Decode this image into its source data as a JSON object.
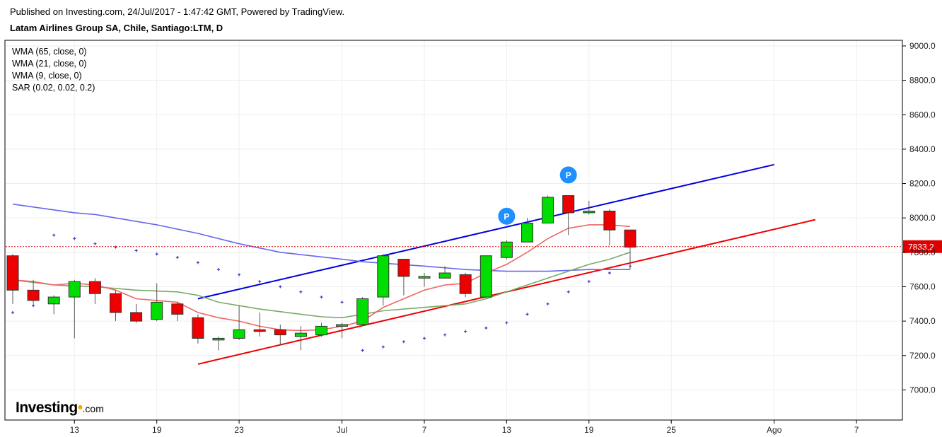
{
  "header": {
    "published": "Published on Investing.com, 24/Jul/2017 - 1:47:42 GMT, Powered by TradingView.",
    "instrument": "Latam Airlines Group SA, Chile, Santiago:LTM, D"
  },
  "legend": [
    "WMA (65, close, 0)",
    "WMA (21, close, 0)",
    "WMA (9, close, 0)",
    "SAR (0.02, 0.02, 0.2)"
  ],
  "brand": {
    "name": "Investing",
    "tld": ".com"
  },
  "colors": {
    "up": "#00dd00",
    "down": "#ee0000",
    "wick": "#555555",
    "wma65": "#6666ee",
    "wma21": "#77aa66",
    "wma9": "#ee6666",
    "sar": "#3333cc",
    "channel_upper": "#0000dd",
    "channel_lower": "#ee0000",
    "pivot": "#1e90ff",
    "last_price": "#dd0000",
    "grid": "#eeeeee"
  },
  "chart_data": {
    "type": "candlestick",
    "y_axis": {
      "ylim": [
        6850,
        9050
      ],
      "ticks": [
        9000,
        8800,
        8600,
        8400,
        8200,
        8000,
        7800,
        7600,
        7400,
        7200,
        7000
      ],
      "tick_labels": [
        "9000.0",
        "8800.0",
        "8600.0",
        "8400.0",
        "8200.0",
        "8000.0",
        "7800.0",
        "7600.0",
        "7400.0",
        "7200.0",
        "7000.0"
      ]
    },
    "x_axis": {
      "tick_labels": [
        "13",
        "19",
        "23",
        "Jul",
        "7",
        "13",
        "19",
        "25",
        "Ago",
        "7"
      ],
      "tick_bar_index": [
        3,
        7,
        11,
        16,
        20,
        24,
        28,
        32,
        37,
        41
      ]
    },
    "last_price": {
      "value": 7833.2,
      "label": "7833.2"
    },
    "candles": [
      {
        "o": 7780,
        "h": 7790,
        "l": 7500,
        "c": 7580
      },
      {
        "o": 7580,
        "h": 7640,
        "l": 7500,
        "c": 7520
      },
      {
        "o": 7500,
        "h": 7550,
        "l": 7440,
        "c": 7540
      },
      {
        "o": 7540,
        "h": 7640,
        "l": 7300,
        "c": 7630
      },
      {
        "o": 7630,
        "h": 7650,
        "l": 7500,
        "c": 7560
      },
      {
        "o": 7560,
        "h": 7580,
        "l": 7400,
        "c": 7450
      },
      {
        "o": 7450,
        "h": 7500,
        "l": 7390,
        "c": 7400
      },
      {
        "o": 7410,
        "h": 7620,
        "l": 7400,
        "c": 7510
      },
      {
        "o": 7500,
        "h": 7510,
        "l": 7400,
        "c": 7440
      },
      {
        "o": 7420,
        "h": 7440,
        "l": 7270,
        "c": 7300
      },
      {
        "o": 7290,
        "h": 7310,
        "l": 7230,
        "c": 7300
      },
      {
        "o": 7300,
        "h": 7490,
        "l": 7290,
        "c": 7350
      },
      {
        "o": 7350,
        "h": 7450,
        "l": 7310,
        "c": 7340
      },
      {
        "o": 7350,
        "h": 7380,
        "l": 7260,
        "c": 7320
      },
      {
        "o": 7310,
        "h": 7370,
        "l": 7230,
        "c": 7330
      },
      {
        "o": 7320,
        "h": 7390,
        "l": 7310,
        "c": 7370
      },
      {
        "o": 7370,
        "h": 7390,
        "l": 7300,
        "c": 7380
      },
      {
        "o": 7380,
        "h": 7540,
        "l": 7370,
        "c": 7530
      },
      {
        "o": 7540,
        "h": 7790,
        "l": 7490,
        "c": 7780
      },
      {
        "o": 7760,
        "h": 7760,
        "l": 7550,
        "c": 7660
      },
      {
        "o": 7650,
        "h": 7680,
        "l": 7600,
        "c": 7660
      },
      {
        "o": 7650,
        "h": 7720,
        "l": 7650,
        "c": 7680
      },
      {
        "o": 7670,
        "h": 7680,
        "l": 7540,
        "c": 7560
      },
      {
        "o": 7540,
        "h": 7780,
        "l": 7530,
        "c": 7780
      },
      {
        "o": 7770,
        "h": 7870,
        "l": 7760,
        "c": 7860
      },
      {
        "o": 7860,
        "h": 8000,
        "l": 7860,
        "c": 7970
      },
      {
        "o": 7970,
        "h": 8130,
        "l": 7970,
        "c": 8120
      },
      {
        "o": 8130,
        "h": 8130,
        "l": 7900,
        "c": 8030
      },
      {
        "o": 8030,
        "h": 8100,
        "l": 8020,
        "c": 8040
      },
      {
        "o": 8040,
        "h": 8050,
        "l": 7840,
        "c": 7930
      },
      {
        "o": 7930,
        "h": 7930,
        "l": 7700,
        "c": 7830
      }
    ],
    "series": [
      {
        "name": "WMA (65, close, 0)",
        "kind": "line",
        "points": [
          [
            0,
            8080
          ],
          [
            3,
            8030
          ],
          [
            4,
            8020
          ],
          [
            7,
            7960
          ],
          [
            9,
            7910
          ],
          [
            11,
            7850
          ],
          [
            13,
            7800
          ],
          [
            16,
            7760
          ],
          [
            17,
            7745
          ],
          [
            20,
            7720
          ],
          [
            22,
            7700
          ],
          [
            24,
            7690
          ],
          [
            26,
            7690
          ],
          [
            28,
            7700
          ],
          [
            30,
            7700
          ]
        ]
      },
      {
        "name": "WMA (21, close, 0)",
        "kind": "line",
        "points": [
          [
            0,
            7640
          ],
          [
            2,
            7610
          ],
          [
            4,
            7600
          ],
          [
            6,
            7580
          ],
          [
            8,
            7570
          ],
          [
            9,
            7550
          ],
          [
            10,
            7510
          ],
          [
            12,
            7470
          ],
          [
            14,
            7440
          ],
          [
            15,
            7425
          ],
          [
            16,
            7420
          ],
          [
            17,
            7440
          ],
          [
            18,
            7460
          ],
          [
            20,
            7480
          ],
          [
            22,
            7500
          ],
          [
            23,
            7530
          ],
          [
            24,
            7570
          ],
          [
            26,
            7650
          ],
          [
            28,
            7730
          ],
          [
            29,
            7760
          ],
          [
            30,
            7800
          ]
        ]
      },
      {
        "name": "WMA (9, close, 0)",
        "kind": "line",
        "points": [
          [
            0,
            7640
          ],
          [
            1,
            7630
          ],
          [
            2,
            7610
          ],
          [
            3,
            7620
          ],
          [
            4,
            7610
          ],
          [
            5,
            7580
          ],
          [
            6,
            7530
          ],
          [
            7,
            7520
          ],
          [
            8,
            7510
          ],
          [
            9,
            7450
          ],
          [
            10,
            7420
          ],
          [
            11,
            7400
          ],
          [
            12,
            7370
          ],
          [
            13,
            7350
          ],
          [
            14,
            7345
          ],
          [
            15,
            7350
          ],
          [
            16,
            7370
          ],
          [
            17,
            7400
          ],
          [
            18,
            7480
          ],
          [
            19,
            7530
          ],
          [
            20,
            7580
          ],
          [
            21,
            7610
          ],
          [
            22,
            7620
          ],
          [
            23,
            7680
          ],
          [
            24,
            7730
          ],
          [
            25,
            7800
          ],
          [
            26,
            7880
          ],
          [
            27,
            7940
          ],
          [
            28,
            7960
          ],
          [
            29,
            7960
          ],
          [
            30,
            7950
          ]
        ]
      },
      {
        "name": "SAR (0.02, 0.02, 0.2)",
        "kind": "dots",
        "points": [
          [
            0,
            7450
          ],
          [
            1,
            7490
          ],
          [
            2,
            7900
          ],
          [
            3,
            7880
          ],
          [
            4,
            7850
          ],
          [
            5,
            7830
          ],
          [
            6,
            7810
          ],
          [
            7,
            7790
          ],
          [
            8,
            7770
          ],
          [
            9,
            7740
          ],
          [
            10,
            7700
          ],
          [
            11,
            7670
          ],
          [
            12,
            7630
          ],
          [
            13,
            7600
          ],
          [
            14,
            7570
          ],
          [
            15,
            7540
          ],
          [
            16,
            7510
          ],
          [
            17,
            7230
          ],
          [
            18,
            7250
          ],
          [
            19,
            7280
          ],
          [
            20,
            7300
          ],
          [
            21,
            7320
          ],
          [
            22,
            7340
          ],
          [
            23,
            7360
          ],
          [
            24,
            7390
          ],
          [
            25,
            7440
          ],
          [
            26,
            7500
          ],
          [
            27,
            7570
          ],
          [
            28,
            7630
          ],
          [
            29,
            7680
          ],
          [
            30,
            7720
          ]
        ]
      }
    ],
    "trendlines": [
      {
        "name": "upper channel",
        "from": [
          9,
          7530
        ],
        "to": [
          37,
          8310
        ]
      },
      {
        "name": "lower channel",
        "from": [
          9,
          7150
        ],
        "to": [
          39,
          7990
        ]
      }
    ],
    "pivot_markers": [
      {
        "label": "P",
        "bar": 24,
        "value": 8010
      },
      {
        "label": "P",
        "bar": 27,
        "value": 8250
      }
    ]
  }
}
